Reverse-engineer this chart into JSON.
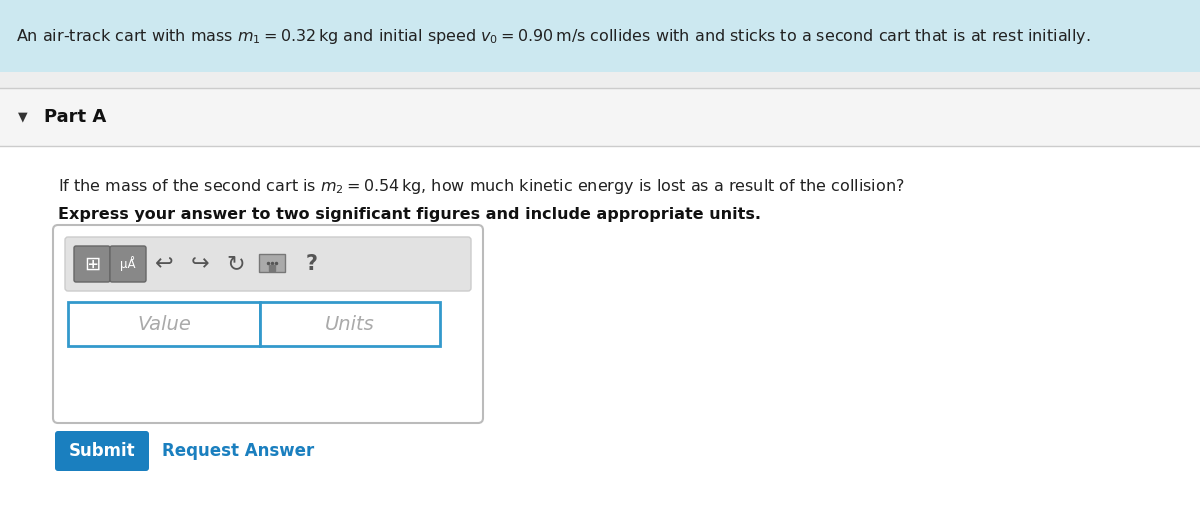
{
  "header_bg": "#cce8f0",
  "part_bg": "#f5f5f5",
  "content_bg": "#ffffff",
  "bg_color": "#eeeeee",
  "input_border": "#3399cc",
  "submit_bg": "#1a7fbf",
  "submit_text_color": "#ffffff",
  "request_text_color": "#1a7fbf",
  "toolbar_bg": "#e2e2e2",
  "toolbar_border": "#cccccc",
  "btn_bg": "#888888",
  "btn_border": "#666666",
  "separator_color": "#cccccc",
  "widget_border": "#bbbbbb",
  "value_placeholder": "Value",
  "units_placeholder": "Units",
  "submit_text": "Submit",
  "request_text": "Request Answer",
  "bold_text": "Express your answer to two significant figures and include appropriate units.",
  "fig_width": 12.0,
  "fig_height": 5.12
}
